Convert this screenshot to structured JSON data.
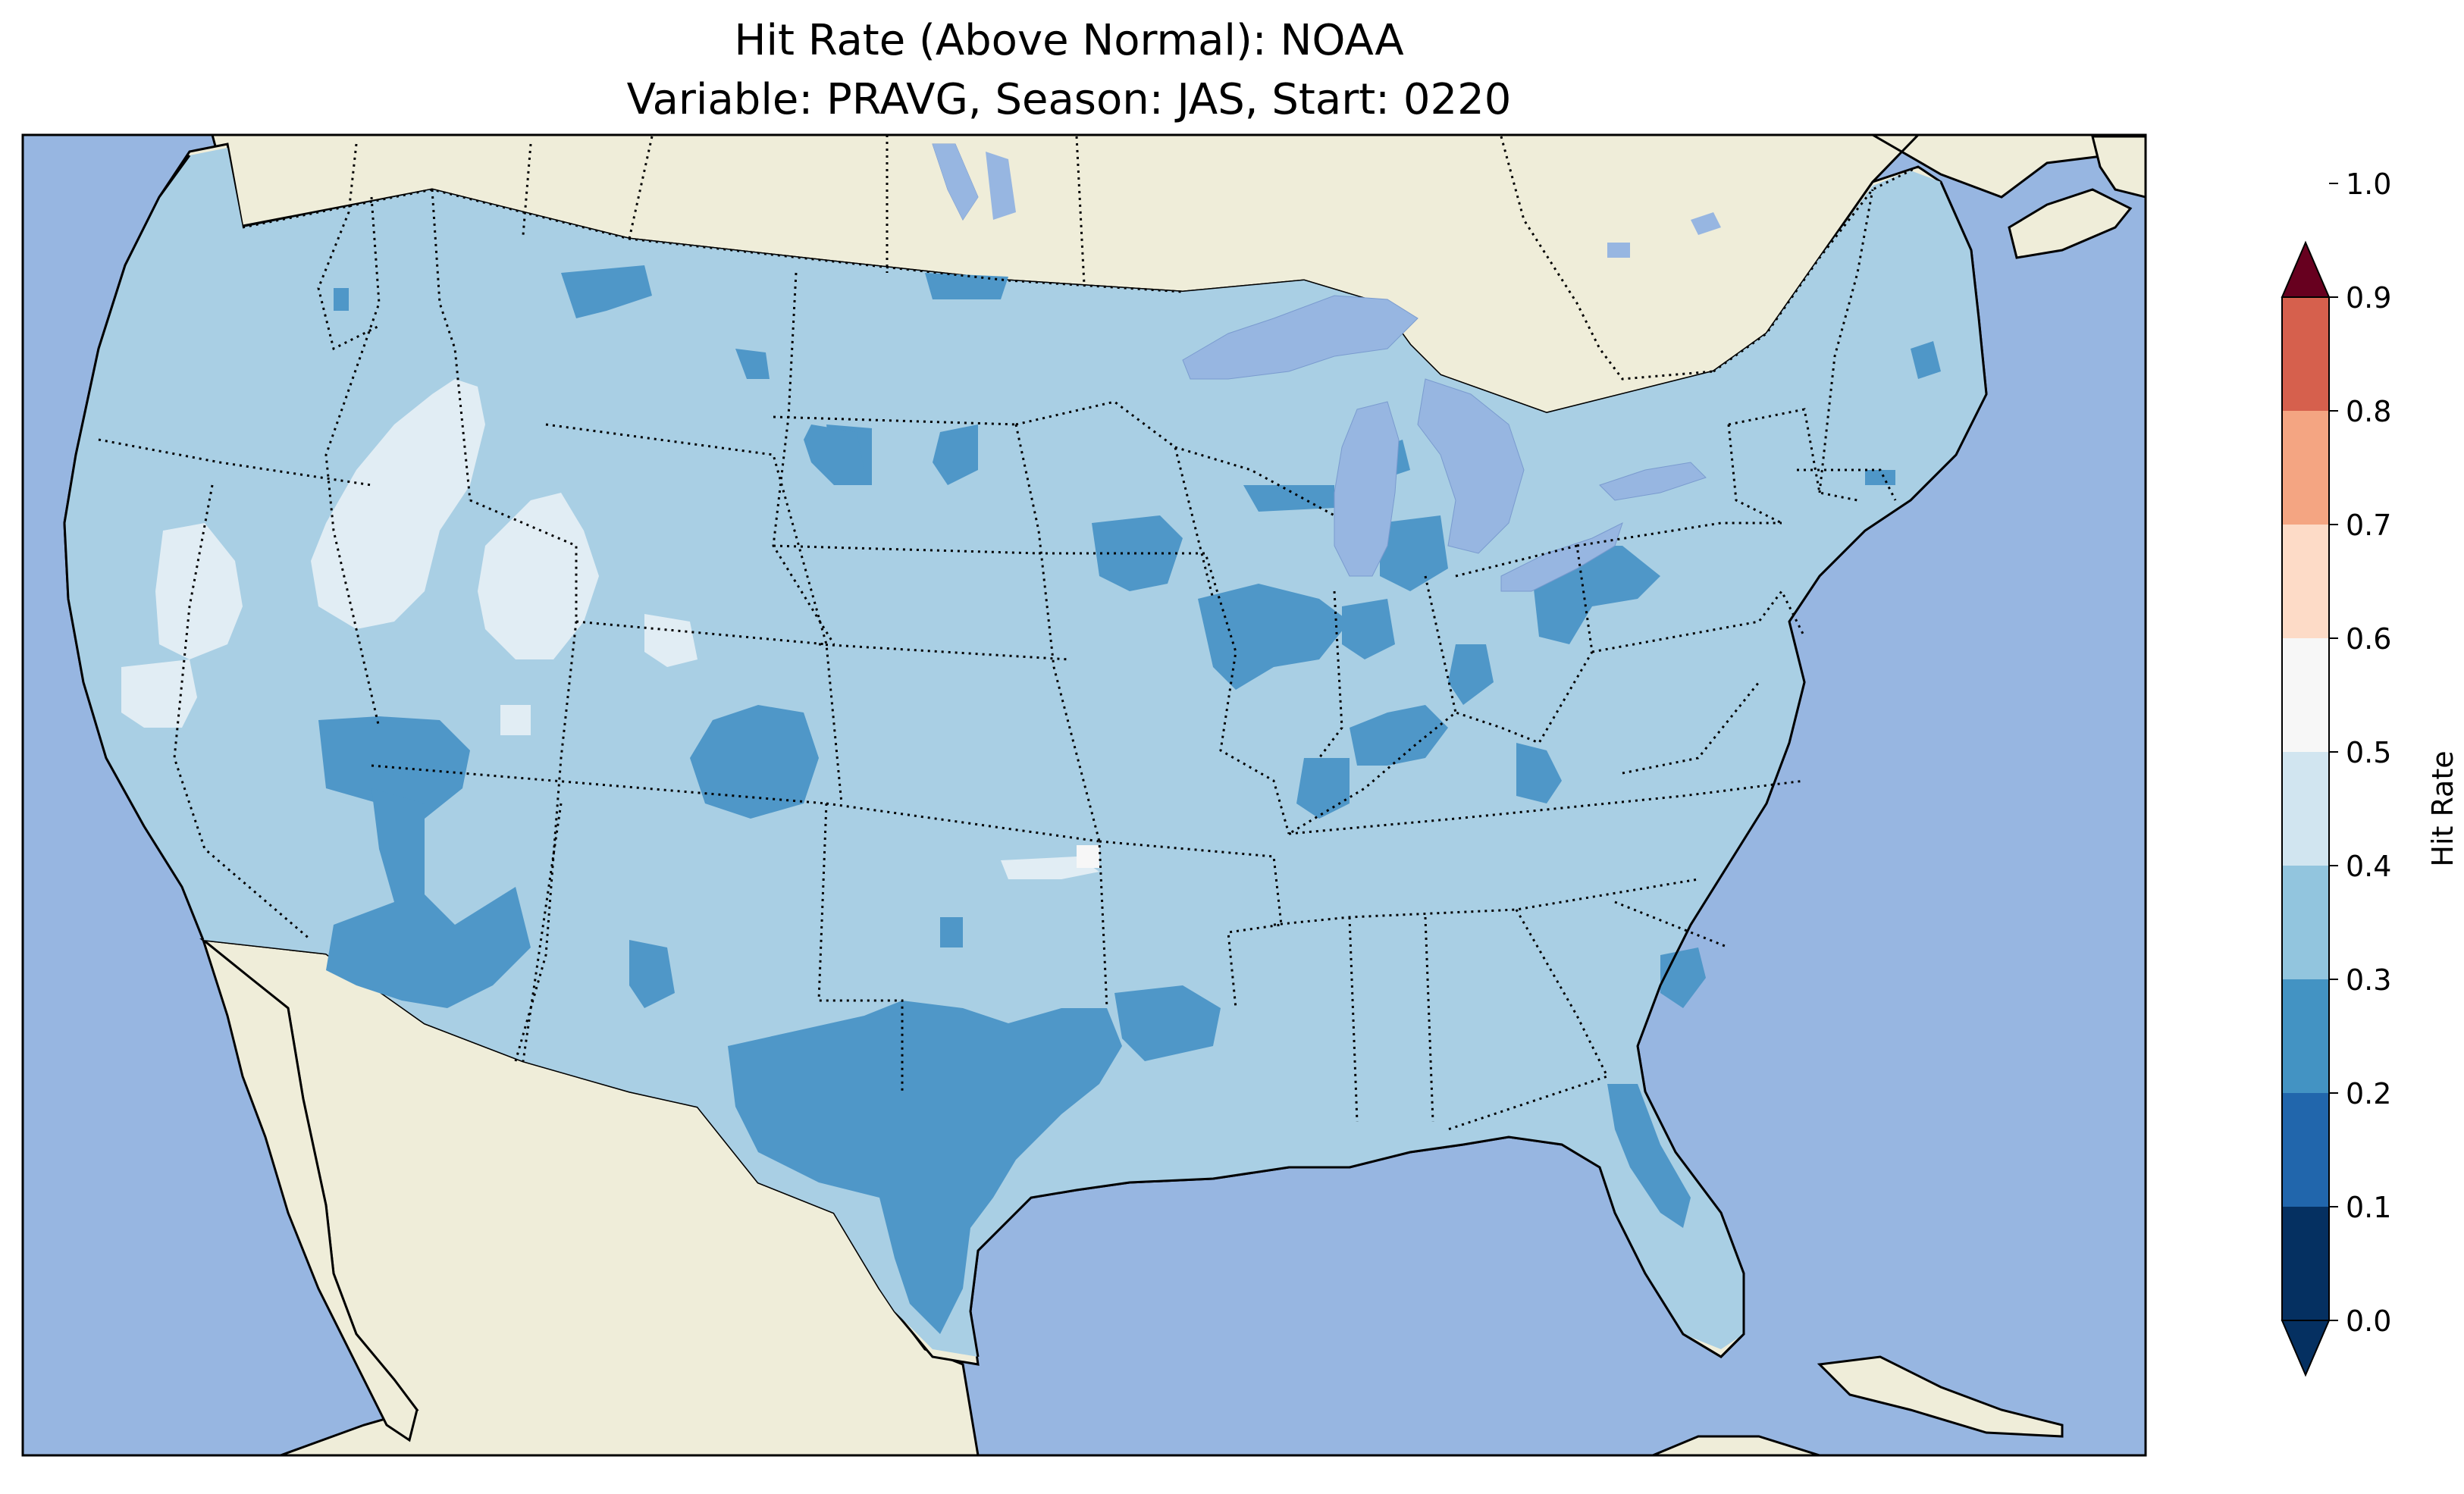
{
  "figure": {
    "title_line1": "Hit Rate (Above Normal): NOAA",
    "title_line2": "Variable: PRAVG, Season: JAS, Start: 0220"
  },
  "colorbar": {
    "label": "Hit Rate",
    "ticks": [
      "0.0",
      "0.1",
      "0.2",
      "0.3",
      "0.4",
      "0.5",
      "0.6",
      "0.7",
      "0.8",
      "0.9",
      "1.0"
    ],
    "colors": [
      "#053061",
      "#2166ac",
      "#4393c3",
      "#92c5de",
      "#d1e5f0",
      "#f7f7f7",
      "#fddbc7",
      "#f4a582",
      "#d6604d",
      "#b2182b",
      "#67001f"
    ],
    "extend": "both"
  },
  "map": {
    "ocean_color": "#97b6e1",
    "land_color": "#efedd9",
    "data_colors": {
      "bin_0.2_0.3": "#4f97c8",
      "bin_0.3_0.4": "#a9cfe4",
      "bin_0.4_0.5": "#e1edf4",
      "bin_0.5_0.6": "#f7f7f7"
    },
    "dominant_bin": "0.3-0.4",
    "projection": "PlateCarree"
  }
}
